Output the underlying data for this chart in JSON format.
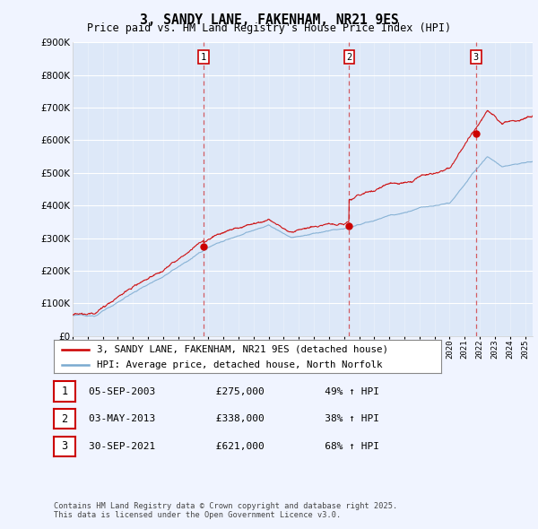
{
  "title": "3, SANDY LANE, FAKENHAM, NR21 9ES",
  "subtitle": "Price paid vs. HM Land Registry's House Price Index (HPI)",
  "red_label": "3, SANDY LANE, FAKENHAM, NR21 9ES (detached house)",
  "blue_label": "HPI: Average price, detached house, North Norfolk",
  "footer": "Contains HM Land Registry data © Crown copyright and database right 2025.\nThis data is licensed under the Open Government Licence v3.0.",
  "sales": [
    {
      "num": 1,
      "date": "05-SEP-2003",
      "price": 275000,
      "pct": "49%",
      "year": 2003.67
    },
    {
      "num": 2,
      "date": "03-MAY-2013",
      "price": 338000,
      "pct": "38%",
      "year": 2013.33
    },
    {
      "num": 3,
      "date": "30-SEP-2021",
      "price": 621000,
      "pct": "68%",
      "year": 2021.75
    }
  ],
  "ylim": [
    0,
    900000
  ],
  "xlim": [
    1995.0,
    2025.5
  ],
  "background_color": "#f0f4ff",
  "plot_bg": "#dde8f8",
  "red_color": "#cc0000",
  "blue_color": "#7aaad0",
  "grid_color": "#ffffff"
}
